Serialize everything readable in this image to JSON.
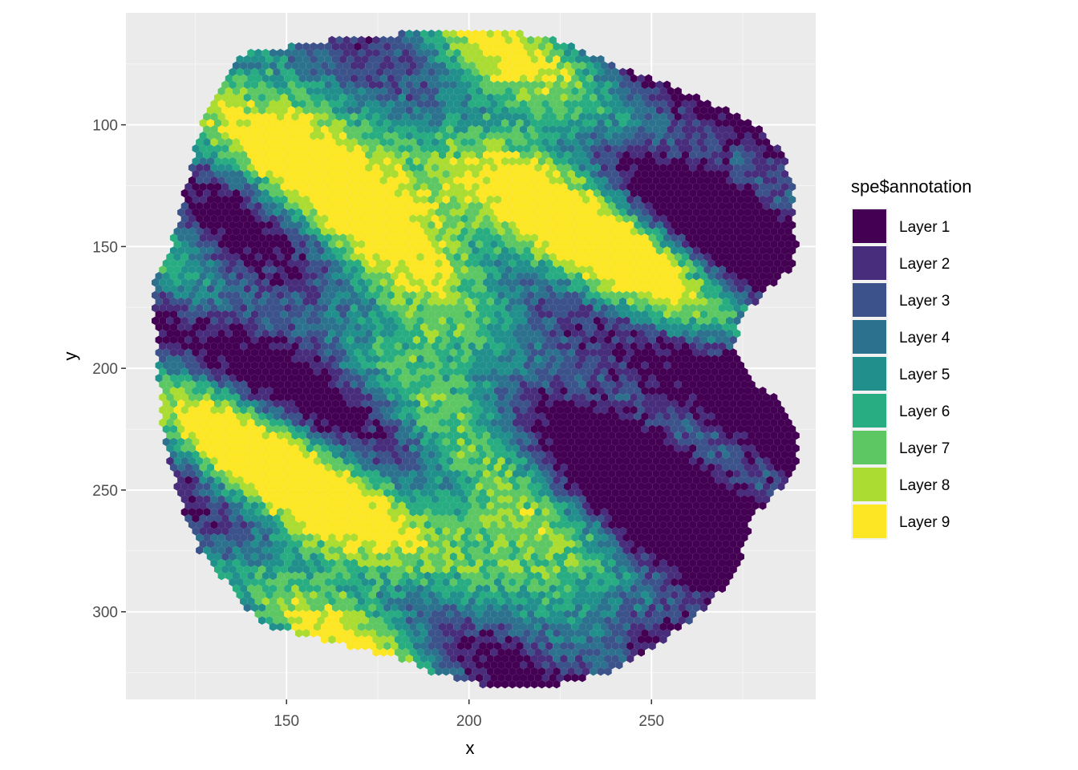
{
  "chart_data": {
    "type": "scatter",
    "marker": "hexagon",
    "xlabel": "x",
    "ylabel": "y",
    "xlim": [
      106,
      295
    ],
    "ylim": [
      336,
      54
    ],
    "y_axis_reversed": true,
    "x_ticks": [
      150,
      200,
      250
    ],
    "y_ticks": [
      100,
      150,
      200,
      250,
      300
    ],
    "grid": true,
    "legend": {
      "title": "spe$annotation",
      "position": "right",
      "entries": [
        {
          "label": "Layer 1",
          "color": "#440154"
        },
        {
          "label": "Layer 2",
          "color": "#472D7B"
        },
        {
          "label": "Layer 3",
          "color": "#3B528B"
        },
        {
          "label": "Layer 4",
          "color": "#2C728E"
        },
        {
          "label": "Layer 5",
          "color": "#21908C"
        },
        {
          "label": "Layer 6",
          "color": "#27AD81"
        },
        {
          "label": "Layer 7",
          "color": "#5DC863"
        },
        {
          "label": "Layer 8",
          "color": "#AADC32"
        },
        {
          "label": "Layer 9",
          "color": "#FDE725"
        }
      ]
    },
    "tissue_outline": [
      [
        138,
        71
      ],
      [
        150,
        68
      ],
      [
        163,
        65
      ],
      [
        175,
        63
      ],
      [
        190,
        62
      ],
      [
        205,
        62
      ],
      [
        220,
        63
      ],
      [
        235,
        72
      ],
      [
        248,
        80
      ],
      [
        262,
        88
      ],
      [
        272,
        95
      ],
      [
        280,
        102
      ],
      [
        286,
        112
      ],
      [
        289,
        125
      ],
      [
        289,
        138
      ],
      [
        290,
        150
      ],
      [
        288,
        160
      ],
      [
        280,
        170
      ],
      [
        275,
        180
      ],
      [
        272,
        192
      ],
      [
        278,
        205
      ],
      [
        286,
        215
      ],
      [
        290,
        225
      ],
      [
        290,
        238
      ],
      [
        285,
        250
      ],
      [
        278,
        260
      ],
      [
        276,
        272
      ],
      [
        272,
        288
      ],
      [
        262,
        302
      ],
      [
        250,
        315
      ],
      [
        238,
        325
      ],
      [
        222,
        331
      ],
      [
        205,
        331
      ],
      [
        190,
        325
      ],
      [
        178,
        318
      ],
      [
        160,
        312
      ],
      [
        145,
        306
      ],
      [
        138,
        298
      ],
      [
        133,
        287
      ],
      [
        126,
        275
      ],
      [
        122,
        260
      ],
      [
        119,
        245
      ],
      [
        116,
        225
      ],
      [
        115,
        205
      ],
      [
        114,
        185
      ],
      [
        113,
        165
      ],
      [
        116,
        158
      ],
      [
        120,
        142
      ],
      [
        122,
        128
      ],
      [
        124,
        115
      ],
      [
        127,
        98
      ],
      [
        131,
        86
      ]
    ],
    "layer_field": {
      "description_of_pattern": "Spatially mixed layers; Layer 9 dominant in upper-left and scattered patches, Layers 1-4 forming branching ridges, Layers 5-8 concentrated in center-right.",
      "seed": 7
    }
  }
}
